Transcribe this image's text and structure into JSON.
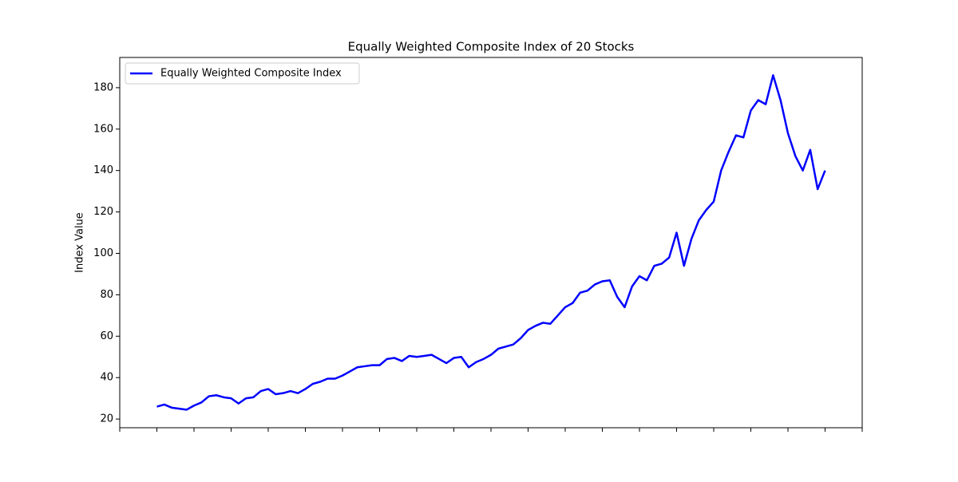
{
  "chart_data": {
    "type": "line",
    "title": "Equally Weighted Composite Index of 20 Stocks",
    "ylabel": "Index Value",
    "x": [
      5,
      6,
      7,
      8,
      9,
      10,
      11,
      12,
      13,
      14,
      15,
      16,
      17,
      18,
      19,
      20,
      21,
      22,
      23,
      24,
      25,
      26,
      27,
      28,
      29,
      30,
      31,
      32,
      33,
      34,
      35,
      36,
      37,
      38,
      39,
      40,
      41,
      42,
      43,
      44,
      45,
      46,
      47,
      48,
      49,
      50,
      51,
      52,
      53,
      54,
      55,
      56,
      57,
      58,
      59,
      60,
      61,
      62,
      63,
      64,
      65,
      66,
      67,
      68,
      69,
      70,
      71,
      72,
      73,
      74,
      75,
      76,
      77,
      78,
      79,
      80,
      81,
      82,
      83,
      84,
      85,
      86,
      87,
      88,
      89,
      90,
      91,
      92,
      93,
      94,
      95
    ],
    "series": [
      {
        "name": "Equally Weighted Composite Index",
        "color": "#0000ff",
        "values": [
          26,
          27,
          25.5,
          25,
          24.5,
          26.5,
          28,
          31,
          31.5,
          30.5,
          30,
          27.5,
          30,
          30.5,
          33.5,
          34.5,
          32,
          32.5,
          33.5,
          32.5,
          34.5,
          37,
          38,
          39.5,
          39.5,
          41,
          43,
          45,
          45.5,
          46,
          46,
          49,
          49.5,
          48,
          50.5,
          50,
          50.5,
          51,
          49,
          47,
          49.5,
          50,
          45,
          47.5,
          49,
          51,
          54,
          55,
          56,
          59,
          63,
          65,
          66.5,
          66,
          70,
          74,
          76,
          81,
          82,
          85,
          86.5,
          87,
          79,
          74,
          84,
          89,
          87,
          94,
          95,
          98,
          110,
          94,
          107,
          116,
          121,
          125,
          140,
          149,
          157,
          156,
          169,
          174,
          172,
          186,
          174,
          158,
          147,
          140,
          150,
          131,
          140
        ]
      }
    ],
    "xlim": [
      0,
      100
    ],
    "xticks": [
      0,
      5,
      10,
      15,
      20,
      25,
      30,
      35,
      40,
      45,
      50,
      55,
      60,
      65,
      70,
      75,
      80,
      85,
      90,
      95,
      100
    ],
    "ylim": [
      15.8,
      194.6
    ],
    "yticks": [
      20,
      40,
      60,
      80,
      100,
      120,
      140,
      160,
      180
    ],
    "legend": "upper left"
  }
}
